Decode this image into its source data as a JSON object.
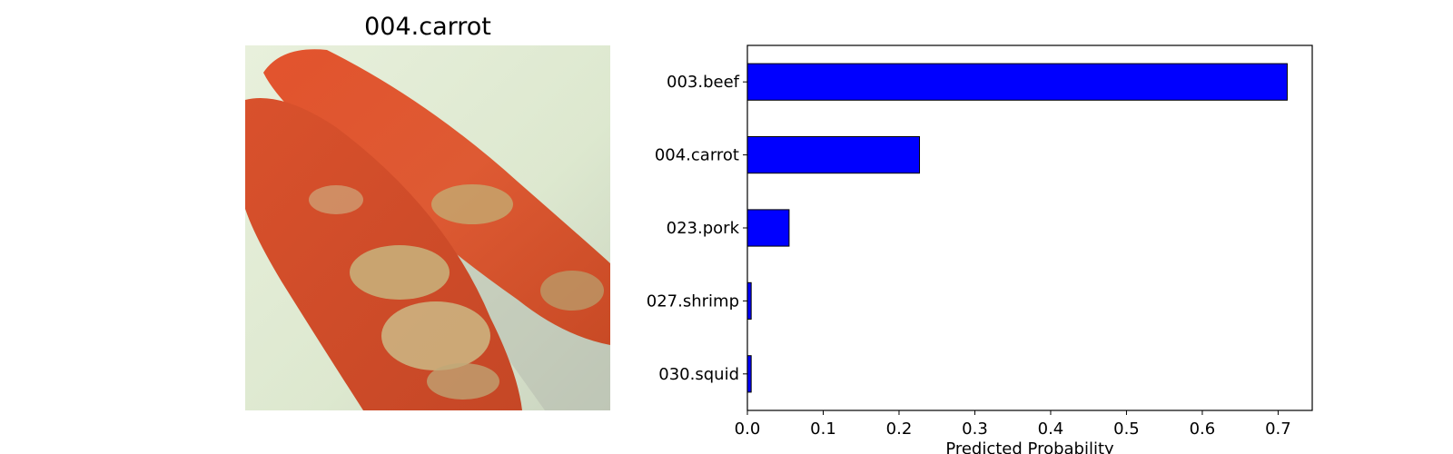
{
  "image_panel": {
    "title": "004.carrot",
    "image_semantic": "photo of two orange carrots coated with breadcrumbs on a pale plate"
  },
  "chart_data": {
    "type": "bar",
    "orientation": "horizontal",
    "categories": [
      "003.beef",
      "004.carrot",
      "023.pork",
      "027.shrimp",
      "030.squid"
    ],
    "values": [
      0.712,
      0.227,
      0.055,
      0.005,
      0.005
    ],
    "xlabel": "Predicted Probability",
    "ylabel": "",
    "xlim": [
      0,
      0.745
    ],
    "xticks": [
      "0.0",
      "0.1",
      "0.2",
      "0.3",
      "0.4",
      "0.5",
      "0.6",
      "0.7"
    ],
    "bar_color": "#0000ff",
    "edge_color": "#000000",
    "grid": false
  }
}
